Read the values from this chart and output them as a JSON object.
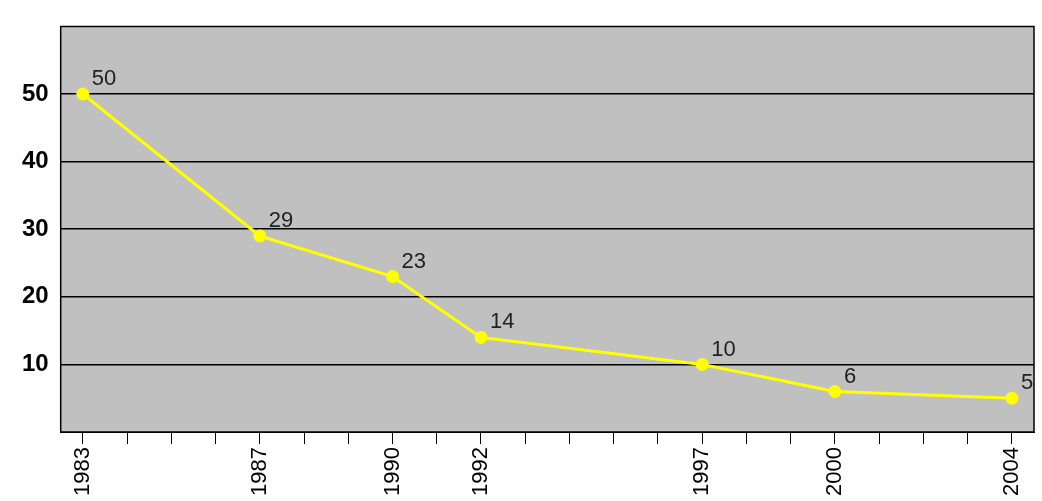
{
  "chart_data": {
    "type": "line",
    "x": [
      1983,
      1987,
      1990,
      1992,
      1997,
      2000,
      2004
    ],
    "series": [
      {
        "color": "#ffff00",
        "values": [
          50,
          29,
          23,
          14,
          10,
          6,
          5
        ]
      }
    ],
    "xlim": [
      1982.5,
      2004.5
    ],
    "xticks": [
      1983,
      {
        "value": 1984,
        "label": null
      },
      {
        "value": 1985,
        "label": null
      },
      {
        "value": 1986,
        "label": null
      },
      1987,
      {
        "value": 1988,
        "label": null
      },
      {
        "value": 1989,
        "label": null
      },
      1990,
      {
        "value": 1991,
        "label": null
      },
      1992,
      {
        "value": 1993,
        "label": null
      },
      {
        "value": 1994,
        "label": null
      },
      {
        "value": 1995,
        "label": null
      },
      {
        "value": 1996,
        "label": null
      },
      1997,
      {
        "value": 1998,
        "label": null
      },
      {
        "value": 1999,
        "label": null
      },
      2000,
      {
        "value": 2001,
        "label": null
      },
      {
        "value": 2002,
        "label": null
      },
      {
        "value": 2003,
        "label": null
      },
      2004
    ],
    "ylim": [
      0,
      60
    ],
    "yticks": [
      10,
      20,
      30,
      40,
      50
    ],
    "grid": "y",
    "legend": false,
    "marker": "circle",
    "line_style": "solid",
    "data_labels": true
  }
}
